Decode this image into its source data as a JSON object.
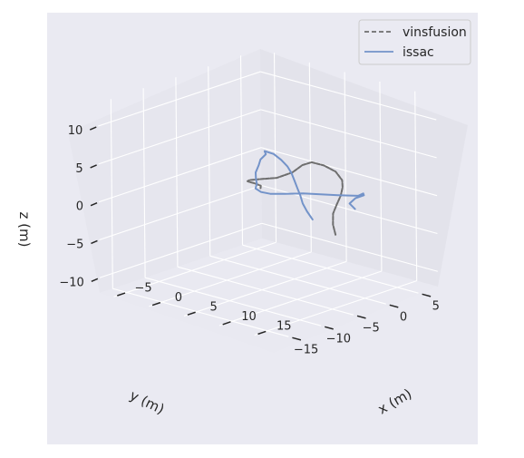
{
  "chart_data": {
    "type": "line",
    "projection": "3d",
    "style": "seaborn-darkgrid",
    "grid": true,
    "legend_position": "top-right",
    "x_axis": {
      "label": "x (m)",
      "range": [
        -7,
        18
      ],
      "ticks": [
        -5,
        0,
        5,
        10,
        15
      ],
      "tick_labels": [
        "−5",
        "0",
        "5",
        "10",
        "15"
      ]
    },
    "y_axis": {
      "label": "y (m)",
      "range": [
        -17,
        8
      ],
      "ticks": [
        -15,
        -10,
        -5,
        0,
        5
      ],
      "tick_labels": [
        "−15",
        "−10",
        "−5",
        "0",
        "5"
      ]
    },
    "z_axis": {
      "label": "z (m)",
      "range": [
        -12,
        13
      ],
      "ticks": [
        -10,
        -5,
        0,
        5,
        10
      ],
      "tick_labels": [
        "−10",
        "−5",
        "0",
        "5",
        "10"
      ]
    },
    "series": [
      {
        "name": "vinsfusion",
        "line_style": "dashed",
        "color": "#6e6e6e",
        "x": [
          17.4,
          15.2,
          13.0,
          11.5,
          10.3,
          9.2,
          8.4,
          7.3,
          6.0,
          5.0,
          4.6,
          4.1,
          2.9,
          1.2,
          -0.3,
          -1.1,
          -1.5,
          -1.3,
          -0.6,
          -0.1
        ],
        "y": [
          -7.0,
          -5.0,
          -2.6,
          -0.4,
          1.5,
          3.0,
          3.8,
          4.0,
          3.6,
          2.8,
          1.8,
          0.8,
          -0.3,
          -1.0,
          -1.0,
          -0.5,
          0.2,
          0.8,
          1.0,
          0.4
        ],
        "z": [
          -1.0,
          -0.8,
          -0.6,
          -0.4,
          -0.1,
          0.3,
          0.8,
          1.6,
          2.2,
          2.6,
          2.4,
          1.6,
          0.9,
          0.5,
          0.0,
          -0.5,
          -0.9,
          -1.2,
          -1.4,
          -1.6
        ]
      },
      {
        "name": "issac",
        "line_style": "solid",
        "color": "#7393c9",
        "x": [
          11.5,
          9.8,
          9.9,
          11.3,
          12.6,
          14.0,
          12.8,
          11.2,
          9.5,
          7.8,
          6.3,
          4.8,
          3.2,
          1.8,
          0.2,
          -1.6,
          -3.2,
          -4.6,
          -5.6,
          -6.6,
          -5.4,
          -3.6,
          -1.8,
          0.0,
          1.8,
          3.6,
          5.4,
          7.2,
          9.0,
          11.0
        ],
        "y": [
          2.4,
          3.4,
          4.2,
          4.0,
          2.5,
          0.2,
          -1.6,
          -2.6,
          -3.4,
          -4.4,
          -5.0,
          -4.8,
          -3.9,
          -2.2,
          -0.6,
          1.3,
          3.5,
          5.3,
          7.2,
          8.1,
          8.2,
          7.4,
          6.4,
          5.1,
          3.6,
          2.1,
          0.6,
          -1.0,
          -2.3,
          -3.6
        ],
        "z": [
          -1.8,
          -1.8,
          -1.3,
          -0.5,
          0.5,
          1.2,
          1.5,
          1.5,
          1.4,
          1.2,
          1.0,
          0.8,
          0.6,
          0.4,
          0.2,
          0.0,
          -0.1,
          -0.2,
          -0.3,
          -0.4,
          -0.5,
          -0.6,
          -0.7,
          -0.8,
          -0.9,
          -1.0,
          -1.1,
          -1.2,
          -1.4,
          -1.6
        ]
      }
    ]
  }
}
